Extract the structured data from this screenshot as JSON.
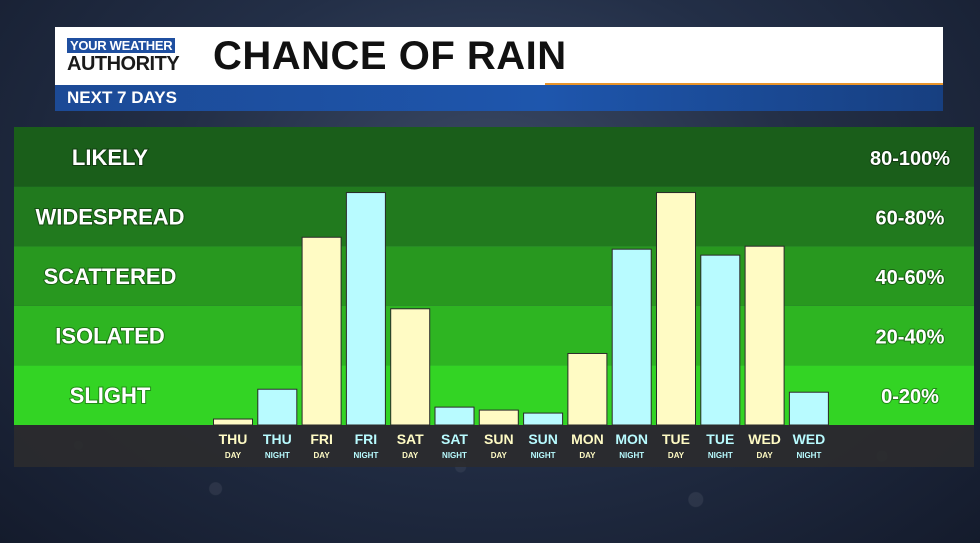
{
  "header": {
    "logo_line1": "YOUR WEATHER",
    "logo_line2": "AUTHORITY",
    "title": "CHANCE OF RAIN",
    "subtitle": "NEXT 7 DAYS"
  },
  "colors": {
    "day_bar": "#fffbc4",
    "night_bar": "#b8fbff",
    "bands": [
      "#1a5e1a",
      "#217a1e",
      "#28981f",
      "#2eb522",
      "#33d424"
    ]
  },
  "chart_data": {
    "type": "bar",
    "title": "CHANCE OF RAIN",
    "ylim": [
      0,
      100
    ],
    "bands": [
      {
        "label": "LIKELY",
        "range": "80-100%",
        "min": 80,
        "max": 100
      },
      {
        "label": "WIDESPREAD",
        "range": "60-80%",
        "min": 60,
        "max": 80
      },
      {
        "label": "SCATTERED",
        "range": "40-60%",
        "min": 40,
        "max": 60
      },
      {
        "label": "ISOLATED",
        "range": "20-40%",
        "min": 20,
        "max": 40
      },
      {
        "label": "SLIGHT",
        "range": "0-20%",
        "min": 0,
        "max": 20
      }
    ],
    "categories": [
      {
        "day": "THU",
        "period": "DAY"
      },
      {
        "day": "THU",
        "period": "NIGHT"
      },
      {
        "day": "FRI",
        "period": "DAY"
      },
      {
        "day": "FRI",
        "period": "NIGHT"
      },
      {
        "day": "SAT",
        "period": "DAY"
      },
      {
        "day": "SAT",
        "period": "NIGHT"
      },
      {
        "day": "SUN",
        "period": "DAY"
      },
      {
        "day": "SUN",
        "period": "NIGHT"
      },
      {
        "day": "MON",
        "period": "DAY"
      },
      {
        "day": "MON",
        "period": "NIGHT"
      },
      {
        "day": "TUE",
        "period": "DAY"
      },
      {
        "day": "TUE",
        "period": "NIGHT"
      },
      {
        "day": "WED",
        "period": "DAY"
      },
      {
        "day": "WED",
        "period": "NIGHT"
      }
    ],
    "values": [
      2,
      12,
      63,
      78,
      39,
      6,
      5,
      4,
      24,
      59,
      78,
      57,
      60,
      11
    ]
  }
}
